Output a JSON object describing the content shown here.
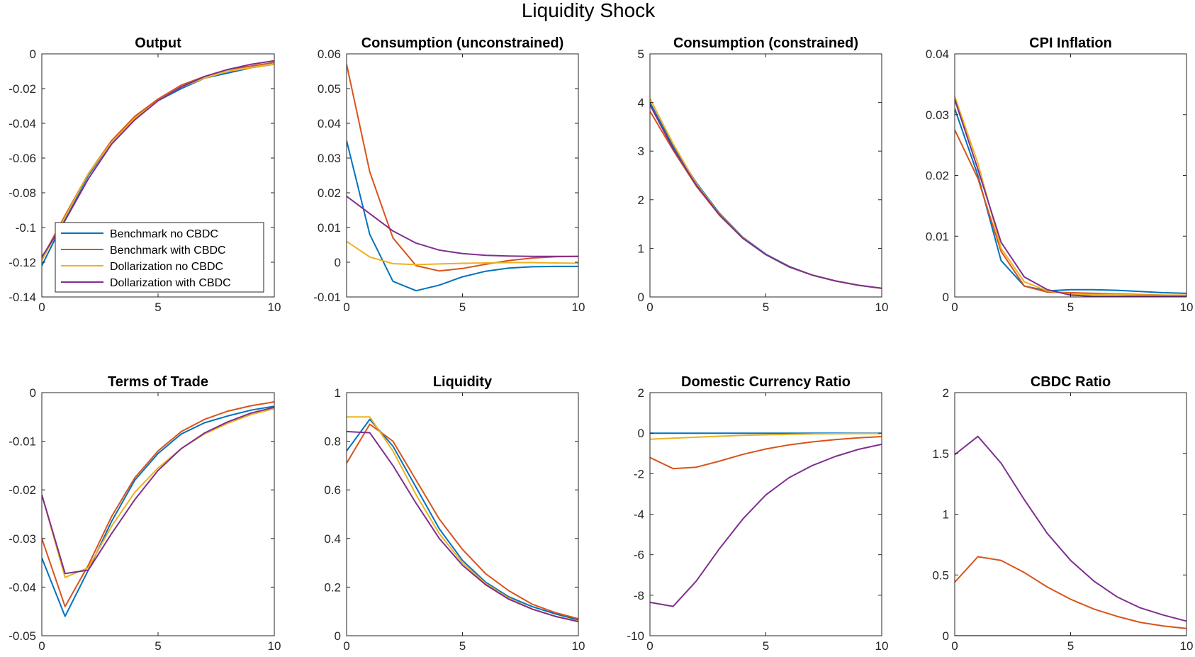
{
  "figure_title": "Liquidity Shock",
  "colors": {
    "Benchmark no CBDC": "#0072BD",
    "Benchmark with CBDC": "#D95319",
    "Dollarization no CBDC": "#EDB120",
    "Dollarization with CBDC": "#7E2F8E"
  },
  "legend": {
    "placement": "lower-left (Output panel)",
    "entries": [
      "Benchmark no CBDC",
      "Benchmark with CBDC",
      "Dollarization no CBDC",
      "Dollarization with CBDC"
    ]
  },
  "chart_data": [
    {
      "type": "line",
      "title": "Output",
      "x": [
        0,
        1,
        2,
        3,
        4,
        5,
        6,
        7,
        8,
        9,
        10
      ],
      "xlim": [
        0,
        10
      ],
      "xticks": [
        0,
        5,
        10
      ],
      "ylim": [
        -0.14,
        0
      ],
      "yticks": [
        -0.14,
        -0.12,
        -0.1,
        -0.08,
        -0.06,
        -0.04,
        -0.02,
        0
      ],
      "ytick_labels": [
        "-0.14",
        "-0.12",
        "-0.1",
        "-0.08",
        "-0.06",
        "-0.04",
        "-0.02",
        "0"
      ],
      "series": [
        {
          "name": "Benchmark no CBDC",
          "values": [
            -0.122,
            -0.095,
            -0.07,
            -0.051,
            -0.037,
            -0.027,
            -0.02,
            -0.014,
            -0.011,
            -0.008,
            -0.006
          ]
        },
        {
          "name": "Benchmark with CBDC",
          "values": [
            -0.118,
            -0.093,
            -0.069,
            -0.05,
            -0.036,
            -0.026,
            -0.018,
            -0.013,
            -0.009,
            -0.007,
            -0.005
          ]
        },
        {
          "name": "Dollarization no CBDC",
          "values": [
            -0.119,
            -0.094,
            -0.069,
            -0.051,
            -0.037,
            -0.027,
            -0.019,
            -0.014,
            -0.01,
            -0.008,
            -0.006
          ]
        },
        {
          "name": "Dollarization with CBDC",
          "values": [
            -0.117,
            -0.096,
            -0.072,
            -0.052,
            -0.038,
            -0.027,
            -0.019,
            -0.013,
            -0.009,
            -0.006,
            -0.004
          ]
        }
      ]
    },
    {
      "type": "line",
      "title": "Consumption (unconstrained)",
      "x": [
        0,
        1,
        2,
        3,
        4,
        5,
        6,
        7,
        8,
        9,
        10
      ],
      "xlim": [
        0,
        10
      ],
      "xticks": [
        0,
        5,
        10
      ],
      "ylim": [
        -0.01,
        0.06
      ],
      "yticks": [
        -0.01,
        0,
        0.01,
        0.02,
        0.03,
        0.04,
        0.05,
        0.06
      ],
      "ytick_labels": [
        "-0.01",
        "0",
        "0.01",
        "0.02",
        "0.03",
        "0.04",
        "0.05",
        "0.06"
      ],
      "series": [
        {
          "name": "Benchmark no CBDC",
          "values": [
            0.035,
            0.008,
            -0.0055,
            -0.0082,
            -0.0066,
            -0.0042,
            -0.0026,
            -0.0017,
            -0.0013,
            -0.0012,
            -0.0012
          ]
        },
        {
          "name": "Benchmark with CBDC",
          "values": [
            0.057,
            0.026,
            0.007,
            -0.001,
            -0.0025,
            -0.0018,
            -0.0006,
            0.0005,
            0.0012,
            0.0016,
            0.0017
          ]
        },
        {
          "name": "Dollarization no CBDC",
          "values": [
            0.006,
            0.0015,
            -0.0004,
            -0.0007,
            -0.0005,
            -0.0003,
            -0.0002,
            -0.0001,
            -0.0001,
            -0.0002,
            -0.0003
          ]
        },
        {
          "name": "Dollarization with CBDC",
          "values": [
            0.019,
            0.014,
            0.009,
            0.0055,
            0.0035,
            0.0025,
            0.002,
            0.0018,
            0.0017,
            0.0017,
            0.0017
          ]
        }
      ]
    },
    {
      "type": "line",
      "title": "Consumption (constrained)",
      "x": [
        0,
        1,
        2,
        3,
        4,
        5,
        6,
        7,
        8,
        9,
        10
      ],
      "xlim": [
        0,
        10
      ],
      "xticks": [
        0,
        5,
        10
      ],
      "ylim": [
        0,
        5
      ],
      "yticks": [
        0,
        1,
        2,
        3,
        4,
        5
      ],
      "ytick_labels": [
        "0",
        "1",
        "2",
        "3",
        "4",
        "5"
      ],
      "series": [
        {
          "name": "Benchmark no CBDC",
          "values": [
            4.0,
            3.1,
            2.35,
            1.72,
            1.23,
            0.88,
            0.63,
            0.45,
            0.33,
            0.24,
            0.18
          ]
        },
        {
          "name": "Benchmark with CBDC",
          "values": [
            3.82,
            3.02,
            2.28,
            1.68,
            1.21,
            0.87,
            0.62,
            0.45,
            0.33,
            0.24,
            0.18
          ]
        },
        {
          "name": "Dollarization no CBDC",
          "values": [
            4.08,
            3.15,
            2.33,
            1.7,
            1.22,
            0.87,
            0.62,
            0.45,
            0.33,
            0.24,
            0.18
          ]
        },
        {
          "name": "Dollarization with CBDC",
          "values": [
            3.95,
            3.05,
            2.3,
            1.69,
            1.21,
            0.87,
            0.62,
            0.45,
            0.33,
            0.24,
            0.18
          ]
        }
      ]
    },
    {
      "type": "line",
      "title": "CPI Inflation",
      "x": [
        0,
        1,
        2,
        3,
        4,
        5,
        6,
        7,
        8,
        9,
        10
      ],
      "xlim": [
        0,
        10
      ],
      "xticks": [
        0,
        5,
        10
      ],
      "ylim": [
        0,
        0.04
      ],
      "yticks": [
        0,
        0.01,
        0.02,
        0.03,
        0.04
      ],
      "ytick_labels": [
        "0",
        "0.01",
        "0.02",
        "0.03",
        "0.04"
      ],
      "series": [
        {
          "name": "Benchmark no CBDC",
          "values": [
            0.031,
            0.02,
            0.006,
            0.0018,
            0.001,
            0.0012,
            0.0012,
            0.0011,
            0.0009,
            0.0007,
            0.0006
          ]
        },
        {
          "name": "Benchmark with CBDC",
          "values": [
            0.0275,
            0.0195,
            0.0075,
            0.0018,
            0.0008,
            0.0007,
            0.0006,
            0.0005,
            0.0004,
            0.0003,
            0.0002
          ]
        },
        {
          "name": "Dollarization no CBDC",
          "values": [
            0.033,
            0.022,
            0.008,
            0.0025,
            0.001,
            0.0005,
            0.0004,
            0.0004,
            0.0003,
            0.0003,
            0.0003
          ]
        },
        {
          "name": "Dollarization with CBDC",
          "values": [
            0.0325,
            0.021,
            0.009,
            0.0033,
            0.0012,
            0.0003,
            0.0001,
            0.0001,
            0.0001,
            0.0001,
            0.0001
          ]
        }
      ]
    },
    {
      "type": "line",
      "title": "Terms of Trade",
      "x": [
        0,
        1,
        2,
        3,
        4,
        5,
        6,
        7,
        8,
        9,
        10
      ],
      "xlim": [
        0,
        10
      ],
      "xticks": [
        0,
        5,
        10
      ],
      "ylim": [
        -0.05,
        0
      ],
      "yticks": [
        -0.05,
        -0.04,
        -0.03,
        -0.02,
        -0.01,
        0
      ],
      "ytick_labels": [
        "-0.05",
        "-0.04",
        "-0.03",
        "-0.02",
        "-0.01",
        "0"
      ],
      "series": [
        {
          "name": "Benchmark no CBDC",
          "values": [
            -0.034,
            -0.046,
            -0.0365,
            -0.0265,
            -0.018,
            -0.0125,
            -0.0085,
            -0.0062,
            -0.0048,
            -0.0036,
            -0.0028
          ]
        },
        {
          "name": "Benchmark with CBDC",
          "values": [
            -0.03,
            -0.044,
            -0.0355,
            -0.0255,
            -0.0175,
            -0.012,
            -0.008,
            -0.0055,
            -0.0038,
            -0.0027,
            -0.0019
          ]
        },
        {
          "name": "Dollarization no CBDC",
          "values": [
            -0.021,
            -0.038,
            -0.036,
            -0.0275,
            -0.0205,
            -0.0155,
            -0.0115,
            -0.0085,
            -0.0063,
            -0.0045,
            -0.0033
          ]
        },
        {
          "name": "Dollarization with CBDC",
          "values": [
            -0.021,
            -0.0372,
            -0.0365,
            -0.029,
            -0.022,
            -0.016,
            -0.0115,
            -0.0083,
            -0.006,
            -0.0042,
            -0.003
          ]
        }
      ]
    },
    {
      "type": "line",
      "title": "Liquidity",
      "x": [
        0,
        1,
        2,
        3,
        4,
        5,
        6,
        7,
        8,
        9,
        10
      ],
      "xlim": [
        0,
        10
      ],
      "xticks": [
        0,
        5,
        10
      ],
      "ylim": [
        0,
        1
      ],
      "yticks": [
        0,
        0.2,
        0.4,
        0.6,
        0.8,
        1
      ],
      "ytick_labels": [
        "0",
        "0.2",
        "0.4",
        "0.6",
        "0.8",
        "1"
      ],
      "series": [
        {
          "name": "Benchmark no CBDC",
          "values": [
            0.76,
            0.89,
            0.78,
            0.61,
            0.44,
            0.31,
            0.22,
            0.16,
            0.12,
            0.09,
            0.065
          ]
        },
        {
          "name": "Benchmark with CBDC",
          "values": [
            0.71,
            0.87,
            0.8,
            0.64,
            0.48,
            0.355,
            0.255,
            0.185,
            0.13,
            0.095,
            0.07
          ]
        },
        {
          "name": "Dollarization no CBDC",
          "values": [
            0.9,
            0.9,
            0.76,
            0.58,
            0.42,
            0.3,
            0.215,
            0.155,
            0.11,
            0.08,
            0.06
          ]
        },
        {
          "name": "Dollarization with CBDC",
          "values": [
            0.84,
            0.835,
            0.7,
            0.545,
            0.4,
            0.29,
            0.21,
            0.15,
            0.11,
            0.08,
            0.058
          ]
        }
      ]
    },
    {
      "type": "line",
      "title": "Domestic Currency Ratio",
      "x": [
        0,
        1,
        2,
        3,
        4,
        5,
        6,
        7,
        8,
        9,
        10
      ],
      "xlim": [
        0,
        10
      ],
      "xticks": [
        0,
        5,
        10
      ],
      "ylim": [
        -10,
        2
      ],
      "yticks": [
        -10,
        -8,
        -6,
        -4,
        -2,
        0,
        2
      ],
      "ytick_labels": [
        "-10",
        "-8",
        "-6",
        "-4",
        "-2",
        "0",
        "2"
      ],
      "series": [
        {
          "name": "Benchmark no CBDC",
          "values": [
            0,
            0,
            0,
            0,
            0,
            0,
            0,
            0,
            0,
            0,
            0
          ]
        },
        {
          "name": "Benchmark with CBDC",
          "values": [
            -1.2,
            -1.75,
            -1.68,
            -1.38,
            -1.05,
            -0.78,
            -0.58,
            -0.43,
            -0.32,
            -0.23,
            -0.17
          ]
        },
        {
          "name": "Dollarization no CBDC",
          "values": [
            -0.3,
            -0.25,
            -0.2,
            -0.15,
            -0.11,
            -0.08,
            -0.06,
            -0.04,
            -0.03,
            -0.02,
            -0.02
          ]
        },
        {
          "name": "Dollarization with CBDC",
          "values": [
            -8.35,
            -8.55,
            -7.3,
            -5.7,
            -4.25,
            -3.05,
            -2.2,
            -1.6,
            -1.15,
            -0.8,
            -0.55
          ]
        }
      ]
    },
    {
      "type": "line",
      "title": "CBDC Ratio",
      "x": [
        0,
        1,
        2,
        3,
        4,
        5,
        6,
        7,
        8,
        9,
        10
      ],
      "xlim": [
        0,
        10
      ],
      "xticks": [
        0,
        5,
        10
      ],
      "ylim": [
        0,
        2
      ],
      "yticks": [
        0,
        0.5,
        1,
        1.5,
        2
      ],
      "ytick_labels": [
        "0",
        "0.5",
        "1",
        "1.5",
        "2"
      ],
      "series": [
        {
          "name": "Benchmark no CBDC",
          "values": [
            0,
            0,
            0,
            0,
            0,
            0,
            0,
            0,
            0,
            0,
            0
          ]
        },
        {
          "name": "Benchmark with CBDC",
          "values": [
            0.44,
            0.65,
            0.62,
            0.52,
            0.4,
            0.3,
            0.22,
            0.16,
            0.11,
            0.08,
            0.06
          ]
        },
        {
          "name": "Dollarization no CBDC",
          "values": [
            0,
            0,
            0,
            0,
            0,
            0,
            0,
            0,
            0,
            0,
            0
          ]
        },
        {
          "name": "Dollarization with CBDC",
          "values": [
            1.49,
            1.64,
            1.42,
            1.12,
            0.84,
            0.62,
            0.45,
            0.32,
            0.23,
            0.17,
            0.12
          ]
        }
      ]
    }
  ]
}
